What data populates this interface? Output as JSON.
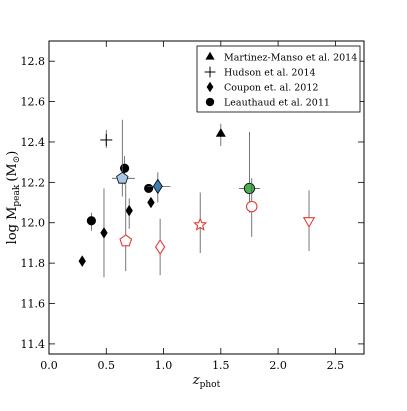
{
  "chart_data": {
    "type": "scatter",
    "xlabel": "z",
    "xlabel_sub": "phot",
    "ylabel": "log M",
    "ylabel_sub": "peak",
    "ylabel_unit": "(M",
    "ylabel_unit_sym": "⊙",
    "ylabel_unit_close": ")",
    "xlim": [
      0.0,
      2.75
    ],
    "ylim": [
      11.35,
      12.9
    ],
    "x_ticks": [
      0.0,
      0.5,
      1.0,
      1.5,
      2.0,
      2.5
    ],
    "x_tick_labels": [
      "0.0",
      "0.5",
      "1.0",
      "1.5",
      "2.0",
      "2.5"
    ],
    "y_ticks": [
      11.4,
      11.6,
      11.8,
      12.0,
      12.2,
      12.4,
      12.6,
      12.8
    ],
    "y_tick_labels": [
      "11.4",
      "11.6",
      "11.8",
      "12.0",
      "12.2",
      "12.4",
      "12.6",
      "12.8"
    ],
    "grid": false,
    "legend_position": "top-right",
    "legend": [
      {
        "marker": "triangle",
        "label": "Martinez-Manso et al. 2014"
      },
      {
        "marker": "plus",
        "label": "Hudson et al. 2014"
      },
      {
        "marker": "diamond",
        "label": "Coupon et. al. 2012"
      },
      {
        "marker": "circle",
        "label": "Leauthaud et al. 2011"
      }
    ],
    "series": [
      {
        "label": "Martinez-Manso et al. 2014",
        "marker": "triangle",
        "points": [
          {
            "x": 1.5,
            "y": 12.44,
            "ylo": 12.38,
            "yhi": 12.49
          }
        ]
      },
      {
        "label": "Hudson et al. 2014",
        "marker": "plus",
        "points": [
          {
            "x": 0.5,
            "y": 12.41,
            "ylo": 12.37,
            "yhi": 12.46
          }
        ]
      },
      {
        "label": "Coupon et. al. 2012",
        "marker": "diamond",
        "points": [
          {
            "x": 0.29,
            "y": 11.81
          },
          {
            "x": 0.48,
            "y": 11.95,
            "ylo": 11.73,
            "yhi": 12.17
          },
          {
            "x": 0.7,
            "y": 12.06,
            "ylo": 11.97,
            "yhi": 12.12
          },
          {
            "x": 0.89,
            "y": 12.1
          }
        ]
      },
      {
        "label": "Leauthaud et al. 2011",
        "marker": "circle",
        "points": [
          {
            "x": 0.37,
            "y": 12.01,
            "ylo": 11.96,
            "yhi": 12.05
          },
          {
            "x": 0.66,
            "y": 12.27,
            "ylo": 12.19,
            "yhi": 12.33
          },
          {
            "x": 0.87,
            "y": 12.17
          }
        ]
      },
      {
        "marker": "pentagon",
        "color": "#a7c7e7",
        "points": [
          {
            "x": 0.64,
            "y": 12.22,
            "xlo": 0.55,
            "xhi": 0.75,
            "ylo": 12.13,
            "yhi": 12.51
          }
        ]
      },
      {
        "marker": "diamond",
        "color": "#3a7fb0",
        "points": [
          {
            "x": 0.95,
            "y": 12.18,
            "xlo": 0.86,
            "xhi": 1.06,
            "ylo": 12.1,
            "yhi": 12.25
          }
        ]
      },
      {
        "marker": "circle",
        "color": "#4caf50",
        "points": [
          {
            "x": 1.75,
            "y": 12.17,
            "xlo": 1.66,
            "xhi": 1.84,
            "ylo": 12.05,
            "yhi": 12.45
          }
        ]
      },
      {
        "marker": "pentagon-open",
        "color": "#e53935",
        "points": [
          {
            "x": 0.67,
            "y": 11.91,
            "ylo": 11.76,
            "yhi": 12.19
          }
        ]
      },
      {
        "marker": "diamond-open",
        "color": "#e53935",
        "points": [
          {
            "x": 0.97,
            "y": 11.88,
            "ylo": 11.74,
            "yhi": 12.02
          }
        ]
      },
      {
        "marker": "star-open",
        "color": "#e53935",
        "points": [
          {
            "x": 1.32,
            "y": 11.99,
            "ylo": 11.85,
            "yhi": 12.15
          }
        ]
      },
      {
        "marker": "circle-open",
        "color": "#e53935",
        "points": [
          {
            "x": 1.77,
            "y": 12.08,
            "ylo": 11.93,
            "yhi": 12.22
          }
        ]
      },
      {
        "marker": "triangle-down-open",
        "color": "#e53935",
        "points": [
          {
            "x": 2.27,
            "y": 12.01,
            "ylo": 11.86,
            "yhi": 12.16
          }
        ]
      }
    ]
  }
}
